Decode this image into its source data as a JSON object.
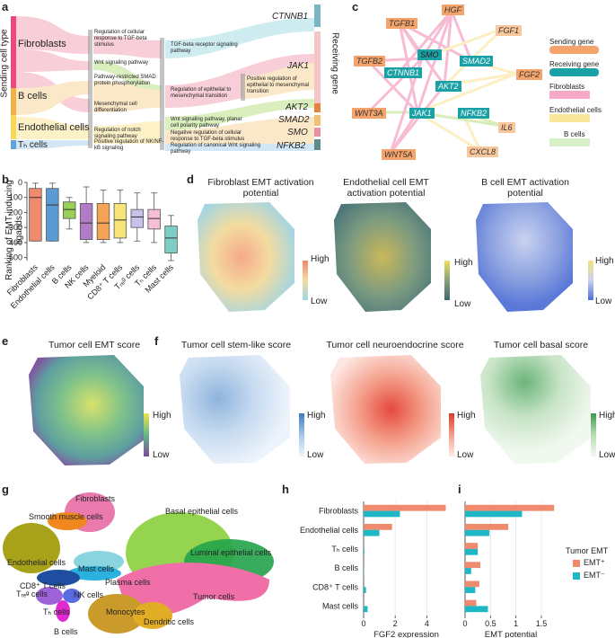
{
  "panel_letters": [
    "a",
    "b",
    "c",
    "d",
    "e",
    "f",
    "g",
    "h",
    "i"
  ],
  "panel_a": {
    "left_axis_label": "Sending cell type",
    "right_axis_label": "Receiving gene",
    "senders": [
      "Fibroblasts",
      "B cells",
      "Endothelial cells",
      "Tₕ cells"
    ],
    "pathways": [
      "Regulation of cellular response to TGF-beta stimulus",
      "Wnt signaling pathway",
      "Pathway-restricted SMAD protein phosphorylation",
      "Mesenchymal cell differentiation",
      "Regulation of notch signaling pathway",
      "Positive regulation of NK/NF-kB signaling",
      "TGF-beta receptor signaling pathway",
      "Regulation of epithelial to mesenchymal transition",
      "Wnt signaling pathway, planar cell polarity pathway",
      "Negative regulation of cellular response to TGF-beta stimulus",
      "Regulation of canonical Wnt signaling pathway",
      "Positive regulation of epithelial to mesenchymal transition"
    ],
    "genes": [
      "CTNNB1",
      "JAK1",
      "AKT2",
      "SMAD2",
      "SMO",
      "NFKB2"
    ]
  },
  "panel_b": {
    "ylabel": "Ranking of EMT-inducing ligands",
    "ticks": [
      0,
      100,
      200,
      300,
      400,
      500
    ],
    "categories": [
      "Fibroblasts",
      "Endothelial cells",
      "B cells",
      "NK cells",
      "Myeloid",
      "CD8⁺ T cells",
      "Tᵣₑᵍ cells",
      "Tₕ cells",
      "Mast cells"
    ]
  },
  "panel_c": {
    "nodes": [
      "HGF",
      "TGFB1",
      "FGF1",
      "TGFB2",
      "SMO",
      "SMAD2",
      "CTNNB1",
      "FGF2",
      "AKT2",
      "WNT3A",
      "JAK1",
      "NFKB2",
      "IL6",
      "WNT5A",
      "CXCL8"
    ],
    "legend": [
      "Sending gene",
      "Receiving gene",
      "Fibroblasts",
      "Endothelial cells",
      "B cells"
    ]
  },
  "panel_d": {
    "titles": [
      "Fibroblast EMT activation potential",
      "Endothelial cell EMT activation potential",
      "B cell EMT activation potential"
    ],
    "high": "High",
    "low": "Low"
  },
  "panel_e": {
    "title": "Tumor cell EMT score",
    "high": "High",
    "low": "Low"
  },
  "panel_f": {
    "titles": [
      "Tumor cell stem-like score",
      "Tumor cell neuroendocrine score",
      "Tumor cell basal score"
    ],
    "high": "High",
    "low": "Low"
  },
  "panel_g": {
    "labels": [
      "Fibroblasts",
      "Smooth muscle cells",
      "Basal epithelial cells",
      "Luminal epithelial cells",
      "Endothelial cells",
      "Mast cells",
      "Plasma cells",
      "CD8⁺ T cells",
      "Tᵣₑᵍ cells",
      "NK cells",
      "Tₕ cells",
      "Monocytes",
      "Dendritic cells",
      "B cells",
      "Tumor cells"
    ]
  },
  "chart_data": [
    {
      "type": "box",
      "title": "Ranking of EMT-inducing ligands",
      "ylabel": "Ranking of EMT-inducing ligands",
      "ylim": [
        0,
        520
      ],
      "y_inverted": true,
      "categories": [
        "Fibroblasts",
        "Endothelial cells",
        "B cells",
        "NK cells",
        "Myeloid",
        "CD8⁺ T cells",
        "Tᵣₑᵍ cells",
        "Tₕ cells",
        "Mast cells"
      ],
      "boxes": [
        {
          "q1": 40,
          "median": 100,
          "q3": 390,
          "whislo": 5,
          "whishi": 390,
          "color": "#f08a6c"
        },
        {
          "q1": 40,
          "median": 150,
          "q3": 390,
          "whislo": 5,
          "whishi": 390,
          "color": "#5b9bd5"
        },
        {
          "q1": 130,
          "median": 180,
          "q3": 240,
          "whislo": 100,
          "whishi": 310,
          "color": "#9ad057"
        },
        {
          "q1": 140,
          "median": 270,
          "q3": 380,
          "whislo": 30,
          "whishi": 400,
          "color": "#b07cc6"
        },
        {
          "q1": 140,
          "median": 270,
          "q3": 380,
          "whislo": 50,
          "whishi": 400,
          "color": "#f6a356"
        },
        {
          "q1": 140,
          "median": 250,
          "q3": 370,
          "whislo": 50,
          "whishi": 400,
          "color": "#f6e37a"
        },
        {
          "q1": 180,
          "median": 230,
          "q3": 300,
          "whislo": 70,
          "whishi": 390,
          "color": "#c8c1e9"
        },
        {
          "q1": 180,
          "median": 240,
          "q3": 310,
          "whislo": 70,
          "whishi": 400,
          "color": "#f7bcd6"
        },
        {
          "q1": 290,
          "median": 370,
          "q3": 470,
          "whislo": 220,
          "whishi": 520,
          "color": "#7dcfc6"
        }
      ]
    },
    {
      "type": "bar",
      "title": "FGF2 expression",
      "xlabel": "FGF2 expression",
      "xlim": [
        0,
        5.4
      ],
      "xticks": [
        0,
        2,
        4
      ],
      "categories": [
        "Fibroblasts",
        "Endothelial cells",
        "Tₕ cells",
        "B cells",
        "CD8⁺ T cells",
        "Mast cells"
      ],
      "series": [
        {
          "name": "EMT⁺",
          "color": "#f08a6c",
          "values": [
            5.2,
            1.8,
            0,
            0,
            0,
            0
          ]
        },
        {
          "name": "EMT⁻",
          "color": "#1fb7c6",
          "values": [
            2.3,
            1.0,
            0.05,
            0.02,
            0.15,
            0.25
          ]
        }
      ]
    },
    {
      "type": "bar",
      "title": "EMT potential",
      "xlabel": "EMT potential",
      "xlim": [
        0,
        1.8
      ],
      "xticks": [
        0,
        0.5,
        1.0,
        1.5
      ],
      "categories": [
        "Fibroblasts",
        "Endothelial cells",
        "Tₕ cells",
        "B cells",
        "CD8⁺ T cells",
        "Mast cells"
      ],
      "series": [
        {
          "name": "EMT⁺",
          "color": "#f08a6c",
          "values": [
            1.75,
            0.85,
            0.25,
            0.3,
            0.28,
            0.22
          ]
        },
        {
          "name": "EMT⁻",
          "color": "#1fb7c6",
          "values": [
            1.12,
            0.48,
            0.25,
            0.12,
            0.2,
            0.45
          ]
        }
      ],
      "legend_title": "Tumor EMT"
    }
  ]
}
